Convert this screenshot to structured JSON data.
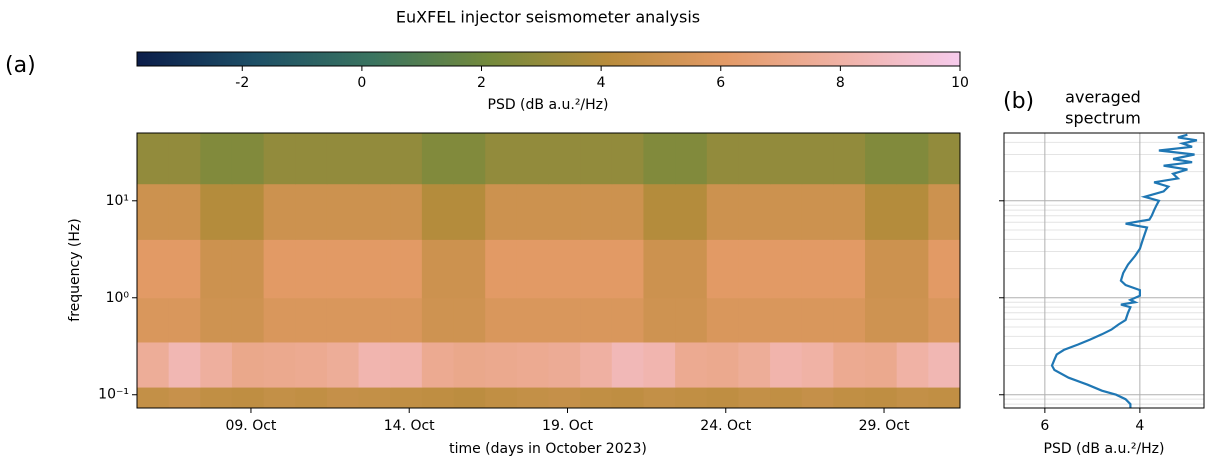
{
  "title": "EuXFEL injector seismometer analysis",
  "chart_data": [
    {
      "type": "heatmap",
      "label": "(a)",
      "xlabel": "time (days in October 2023)",
      "ylabel": "frequency (Hz)",
      "xlim": [
        5.4,
        31.4
      ],
      "xticks": [
        {
          "value": 9,
          "label": "09. Oct"
        },
        {
          "value": 14,
          "label": "14. Oct"
        },
        {
          "value": 19,
          "label": "19. Oct"
        },
        {
          "value": 24,
          "label": "24. Oct"
        },
        {
          "value": 29,
          "label": "29. Oct"
        }
      ],
      "yscale": "log",
      "ylim": [
        0.073,
        50
      ],
      "yticks": [
        {
          "value": 0.1,
          "label": "10⁻¹"
        },
        {
          "value": 1,
          "label": "10⁰"
        },
        {
          "value": 10,
          "label": "10¹"
        }
      ],
      "x": [
        5.4,
        6.4,
        7.4,
        8.4,
        9.4,
        10.4,
        11.4,
        12.4,
        13.4,
        14.4,
        15.4,
        16.4,
        17.4,
        18.4,
        19.4,
        20.4,
        21.4,
        22.4,
        23.4,
        24.4,
        25.4,
        26.4,
        27.4,
        28.4,
        29.4,
        30.4,
        31.4
      ],
      "y": [
        0.073,
        0.12,
        0.35,
        1,
        4,
        15,
        50
      ],
      "values": [
        [
          4.6,
          4.8,
          4.5,
          4.4,
          4.6,
          4.5,
          4.7,
          4.6,
          4.5,
          4.4,
          4.3,
          4.5,
          4.6,
          4.7,
          4.5,
          4.4,
          4.6,
          4.5,
          4.4,
          4.6,
          4.5,
          4.7,
          4.5,
          4.4,
          4.6,
          4.5
        ],
        [
          7.6,
          8.4,
          7.8,
          7.2,
          7.3,
          7.4,
          7.6,
          8.3,
          8.2,
          7.4,
          7.2,
          7.3,
          7.4,
          7.5,
          7.9,
          8.5,
          8.3,
          7.4,
          7.3,
          7.6,
          8.2,
          8.0,
          7.4,
          7.3,
          8.0,
          8.4
        ],
        [
          5.6,
          5.6,
          5.1,
          5.1,
          5.6,
          5.6,
          5.6,
          5.6,
          5.6,
          5.1,
          5.1,
          5.6,
          5.6,
          5.6,
          5.6,
          5.6,
          5.1,
          5.1,
          5.6,
          5.6,
          5.6,
          5.6,
          5.6,
          5.1,
          5.1,
          5.6
        ],
        [
          6.0,
          6.0,
          5.0,
          5.0,
          6.0,
          6.0,
          6.0,
          6.0,
          6.0,
          5.0,
          5.0,
          6.0,
          6.0,
          6.0,
          6.0,
          6.0,
          5.0,
          5.0,
          6.0,
          6.0,
          6.0,
          6.0,
          6.0,
          5.0,
          5.0,
          6.0
        ],
        [
          5.0,
          5.0,
          4.0,
          4.0,
          5.0,
          5.0,
          5.0,
          5.0,
          5.0,
          4.0,
          4.0,
          5.0,
          5.0,
          5.0,
          5.0,
          5.0,
          4.0,
          4.0,
          5.0,
          5.0,
          5.0,
          5.0,
          5.0,
          4.0,
          4.0,
          5.0
        ],
        [
          3.0,
          3.0,
          2.5,
          2.5,
          3.0,
          3.0,
          3.0,
          3.0,
          3.0,
          2.5,
          2.5,
          3.0,
          3.0,
          3.0,
          3.0,
          3.0,
          2.5,
          2.5,
          3.0,
          3.0,
          3.0,
          3.0,
          3.0,
          2.5,
          2.5,
          3.0
        ]
      ],
      "colorbar": {
        "label": "PSD (dB a.u.²/Hz)",
        "lim": [
          -3.76,
          10
        ],
        "ticks": [
          -2,
          0,
          2,
          4,
          6,
          8,
          10
        ],
        "colors": [
          "#0b1d4a",
          "#1d4f66",
          "#3a7460",
          "#748a3c",
          "#b88c3c",
          "#e39a66",
          "#f0b2a6",
          "#f6cbec"
        ]
      }
    },
    {
      "type": "line",
      "label": "(b)",
      "title_lines": [
        "averaged",
        "spectrum"
      ],
      "xlabel": "PSD (dB a.u.²/Hz)",
      "xlim": [
        6.86,
        2.65
      ],
      "xticks": [
        6,
        4
      ],
      "yscale": "log",
      "ylim": [
        0.073,
        50
      ],
      "yticks": [
        0.1,
        1,
        10
      ],
      "yminorticks": [
        0.08,
        0.09,
        0.2,
        0.3,
        0.4,
        0.5,
        0.6,
        0.7,
        0.8,
        0.9,
        2,
        3,
        4,
        5,
        6,
        7,
        8,
        9,
        20,
        30,
        40
      ],
      "grid": true,
      "color": "#1f77b4",
      "y": [
        0.073,
        0.08,
        0.09,
        0.1,
        0.11,
        0.127,
        0.15,
        0.18,
        0.2,
        0.23,
        0.26,
        0.29,
        0.33,
        0.37,
        0.42,
        0.47,
        0.53,
        0.59,
        0.7,
        0.8,
        0.85,
        0.9,
        0.95,
        1.05,
        1.2,
        1.35,
        1.5,
        1.8,
        2.2,
        2.7,
        3.2,
        3.8,
        4.5,
        5.3,
        5.8,
        6.4,
        7,
        8,
        9,
        10,
        11,
        12.5,
        14,
        15.5,
        17,
        19,
        21,
        23,
        25,
        27,
        30,
        33,
        36,
        39,
        42,
        45,
        48
      ],
      "values": [
        4.2,
        4.2,
        4.3,
        4.5,
        4.8,
        5.1,
        5.5,
        5.8,
        5.85,
        5.8,
        5.75,
        5.6,
        5.3,
        5.05,
        4.8,
        4.6,
        4.45,
        4.3,
        4.25,
        4.2,
        4.4,
        4.1,
        4.2,
        4.0,
        4.0,
        4.3,
        4.4,
        4.35,
        4.25,
        4.1,
        4.0,
        3.95,
        3.9,
        3.85,
        4.3,
        3.8,
        3.75,
        3.7,
        3.65,
        3.6,
        3.9,
        3.5,
        3.4,
        3.7,
        3.2,
        3.3,
        3.0,
        3.5,
        2.9,
        3.3,
        2.85,
        3.6,
        2.9,
        3.1,
        2.8,
        3.2,
        3.0
      ]
    }
  ]
}
